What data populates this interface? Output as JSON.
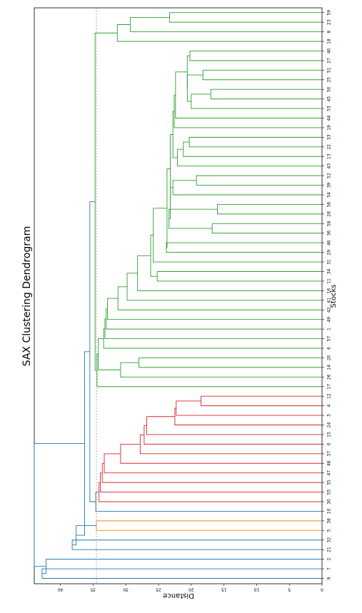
{
  "chart_data": {
    "type": "dendrogram",
    "title": "SAX Clustering Dendrogram",
    "xlabel": "Stocks",
    "ylabel": "Distance",
    "orientation": "rotated",
    "ylim": [
      0,
      44
    ],
    "yticks": [
      0,
      5,
      10,
      15,
      20,
      25,
      30,
      35,
      40
    ],
    "threshold": 34.5,
    "leaves": [
      "9",
      "7",
      "2",
      "21",
      "32",
      "5",
      "38",
      "10",
      "30",
      "55",
      "35",
      "47",
      "48",
      "37",
      "0",
      "15",
      "24",
      "3",
      "4",
      "12",
      "17",
      "26",
      "14",
      "20",
      "6",
      "57",
      "1",
      "49",
      "42",
      "41",
      "16",
      "11",
      "34",
      "31",
      "29",
      "46",
      "36",
      "58",
      "28",
      "56",
      "54",
      "39",
      "52",
      "43",
      "13",
      "22",
      "33",
      "19",
      "44",
      "53",
      "45",
      "50",
      "25",
      "51",
      "27",
      "40",
      "18",
      "8",
      "23",
      "59"
    ],
    "colors": {
      "blue": "#1f77b4",
      "orange": "#ff7f0e",
      "red": "#d62728",
      "green": "#2ca02c",
      "threshold": "#999999"
    },
    "merges": [
      {
        "a": "L0",
        "b": "L1",
        "h": 42.8,
        "c": "blue"
      },
      {
        "a": "M0",
        "b": "L2",
        "h": 42.2,
        "c": "blue"
      },
      {
        "a": "L3",
        "b": "L4",
        "h": 38.2,
        "c": "blue"
      },
      {
        "a": "L5",
        "b": "L6",
        "h": 34.5,
        "c": "orange"
      },
      {
        "a": "M2",
        "b": "M3",
        "h": 37.6,
        "c": "blue"
      },
      {
        "a": "L18",
        "b": "L19",
        "h": 18.5,
        "c": "red"
      },
      {
        "a": "L17",
        "b": "M5",
        "h": 22.3,
        "c": "red"
      },
      {
        "a": "L16",
        "b": "M6",
        "h": 22.5,
        "c": "red"
      },
      {
        "a": "L15",
        "b": "M7",
        "h": 26.8,
        "c": "red"
      },
      {
        "a": "L14",
        "b": "M8",
        "h": 27.2,
        "c": "red"
      },
      {
        "a": "L13",
        "b": "M9",
        "h": 27.8,
        "c": "red"
      },
      {
        "a": "L12",
        "b": "M10",
        "h": 30.8,
        "c": "red"
      },
      {
        "a": "L11",
        "b": "M11",
        "h": 33.3,
        "c": "red"
      },
      {
        "a": "L10",
        "b": "M12",
        "h": 33.6,
        "c": "red"
      },
      {
        "a": "L9",
        "b": "M13",
        "h": 33.9,
        "c": "red"
      },
      {
        "a": "L8",
        "b": "M14",
        "h": 34.1,
        "c": "red"
      },
      {
        "a": "L7",
        "b": "M15",
        "h": 34.6,
        "c": "blue"
      },
      {
        "a": "L22",
        "b": "L23",
        "h": 28.0,
        "c": "green"
      },
      {
        "a": "L21",
        "b": "M17",
        "h": 30.8,
        "c": "green"
      },
      {
        "a": "L34",
        "b": "L35",
        "h": 23.8,
        "c": "green"
      },
      {
        "a": "L36",
        "b": "L37",
        "h": 16.8,
        "c": "green"
      },
      {
        "a": "L38",
        "b": "L39",
        "h": 16.0,
        "c": "green"
      },
      {
        "a": "M20",
        "b": "M21",
        "h": 23.4,
        "c": "green"
      },
      {
        "a": "L41",
        "b": "L42",
        "h": 19.2,
        "c": "green"
      },
      {
        "a": "L40",
        "b": "M23",
        "h": 22.8,
        "c": "green"
      },
      {
        "a": "M22",
        "b": "M24",
        "h": 23.2,
        "c": "green"
      },
      {
        "a": "L45",
        "b": "L46",
        "h": 20.3,
        "c": "green"
      },
      {
        "a": "L44",
        "b": "M26",
        "h": 21.2,
        "c": "green"
      },
      {
        "a": "L43",
        "b": "M27",
        "h": 22.1,
        "c": "green"
      },
      {
        "a": "L50",
        "b": "L51",
        "h": 17.0,
        "c": "green"
      },
      {
        "a": "L49",
        "b": "M29",
        "h": 20.0,
        "c": "green"
      },
      {
        "a": "L52",
        "b": "L53",
        "h": 18.2,
        "c": "green"
      },
      {
        "a": "M30",
        "b": "M31",
        "h": 20.6,
        "c": "green"
      },
      {
        "a": "L54",
        "b": "L55",
        "h": 20.2,
        "c": "green"
      },
      {
        "a": "M32",
        "b": "M33",
        "h": 20.6,
        "c": "green"
      },
      {
        "a": "L48",
        "b": "M34",
        "h": 22.4,
        "c": "green"
      },
      {
        "a": "L47",
        "b": "M35",
        "h": 22.6,
        "c": "green"
      },
      {
        "a": "M28",
        "b": "M36",
        "h": 22.8,
        "c": "green"
      },
      {
        "a": "M25",
        "b": "M37",
        "h": 23.2,
        "c": "green"
      },
      {
        "a": "M19",
        "b": "M38",
        "h": 23.7,
        "c": "green"
      },
      {
        "a": "L33",
        "b": "M39",
        "h": 25.8,
        "c": "green"
      },
      {
        "a": "L31",
        "b": "L32",
        "h": 25.2,
        "c": "green"
      },
      {
        "a": "M41",
        "b": "M40",
        "h": 26.2,
        "c": "green"
      },
      {
        "a": "L30",
        "b": "M42",
        "h": 28.2,
        "c": "green"
      },
      {
        "a": "L29",
        "b": "M43",
        "h": 29.8,
        "c": "green"
      },
      {
        "a": "L28",
        "b": "M44",
        "h": 31.2,
        "c": "green"
      },
      {
        "a": "L27",
        "b": "M45",
        "h": 32.8,
        "c": "green"
      },
      {
        "a": "L26",
        "b": "M46",
        "h": 33.0,
        "c": "green"
      },
      {
        "a": "L25",
        "b": "M47",
        "h": 33.2,
        "c": "green"
      },
      {
        "a": "L24",
        "b": "M48",
        "h": 33.4,
        "c": "green"
      },
      {
        "a": "M18",
        "b": "M49",
        "h": 34.2,
        "c": "green"
      },
      {
        "a": "L20",
        "b": "M50",
        "h": 34.4,
        "c": "green"
      },
      {
        "a": "L58",
        "b": "L59",
        "h": 23.3,
        "c": "green"
      },
      {
        "a": "L57",
        "b": "M52",
        "h": 29.3,
        "c": "green"
      },
      {
        "a": "L56",
        "b": "M53",
        "h": 31.3,
        "c": "green"
      },
      {
        "a": "M51",
        "b": "M54",
        "h": 34.7,
        "c": "green"
      },
      {
        "a": "M16",
        "b": "M55",
        "h": 35.5,
        "c": "blue"
      },
      {
        "a": "M4",
        "b": "M56",
        "h": 36.3,
        "c": "blue"
      },
      {
        "a": "M1",
        "b": "M57",
        "h": 44.0,
        "c": "blue"
      }
    ]
  }
}
